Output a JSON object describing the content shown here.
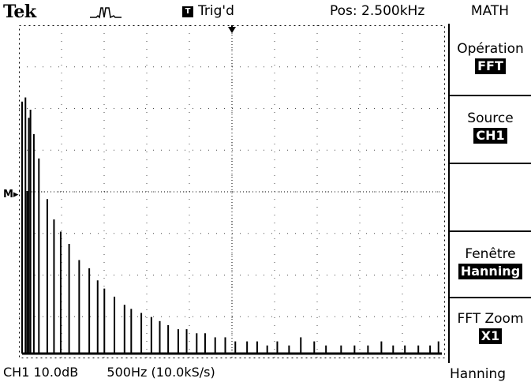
{
  "header": {
    "brand": "Tek",
    "trigger_badge": "T",
    "trigger_status": "Trig'd",
    "position": "Pos: 2.500kHz",
    "menu_title": "MATH"
  },
  "menu": {
    "operation": {
      "label": "Opération",
      "value": "FFT"
    },
    "source": {
      "label": "Source",
      "value": "CH1"
    },
    "window": {
      "label": "Fenêtre",
      "value": "Hanning"
    },
    "zoom": {
      "label": "FFT Zoom",
      "value": "X1"
    }
  },
  "status": {
    "channel_scale": "CH1 10.0dB",
    "timebase": "500Hz (10.0kS/s)",
    "window_readout": "Hanning"
  },
  "reference_marker": "M▸",
  "chart_data": {
    "type": "bar",
    "xlabel": "",
    "ylabel": "",
    "grid": true,
    "xlim": [
      0,
      5000
    ],
    "ylim": [
      0,
      80
    ],
    "x": [
      0,
      40,
      60,
      80,
      100,
      140,
      200,
      300,
      380,
      460,
      560,
      680,
      800,
      900,
      980,
      1100,
      1220,
      1300,
      1420,
      1540,
      1640,
      1740,
      1860,
      1960,
      2080,
      2180,
      2300,
      2420,
      2540,
      2680,
      2800,
      2920,
      3040,
      3180,
      3320,
      3480,
      3620,
      3800,
      3960,
      4120,
      4280,
      4420,
      4560,
      4720,
      4860,
      4960
    ],
    "values": [
      62,
      63,
      40,
      58,
      60,
      54,
      48,
      38,
      33,
      30,
      27,
      23,
      21,
      18,
      16,
      14,
      12,
      11,
      10,
      9,
      8,
      7,
      6,
      6,
      5,
      5,
      4,
      4,
      3,
      3,
      3,
      2,
      3,
      2,
      4,
      3,
      2,
      2,
      2,
      2,
      3,
      2,
      2,
      2,
      2,
      3
    ]
  }
}
